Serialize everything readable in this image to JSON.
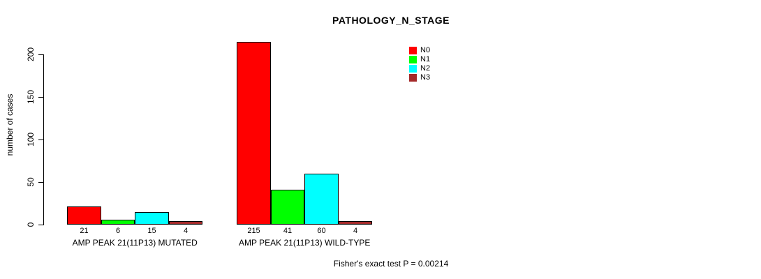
{
  "title": "PATHOLOGY_N_STAGE",
  "annotation": "Fisher's exact test P = 0.00214",
  "chart_data": {
    "type": "bar",
    "title": "PATHOLOGY_N_STAGE",
    "ylabel": "number of cases",
    "xlabel": "",
    "yticks": [
      0,
      50,
      100,
      150,
      200
    ],
    "ylim": [
      0,
      215
    ],
    "grid": false,
    "legend_position": "top-right",
    "bar_value_labels": true,
    "categories": [
      "AMP PEAK 21(11P13) MUTATED",
      "AMP PEAK 21(11P13) WILD-TYPE"
    ],
    "series": [
      {
        "name": "N0",
        "color": "#FF0000",
        "values": [
          21,
          215
        ]
      },
      {
        "name": "N1",
        "color": "#00FF00",
        "values": [
          6,
          41
        ]
      },
      {
        "name": "N2",
        "color": "#00FFFF",
        "values": [
          15,
          60
        ]
      },
      {
        "name": "N3",
        "color": "#A52A2A",
        "values": [
          4,
          4
        ]
      }
    ],
    "annotation": "Fisher's exact test P = 0.00214"
  }
}
